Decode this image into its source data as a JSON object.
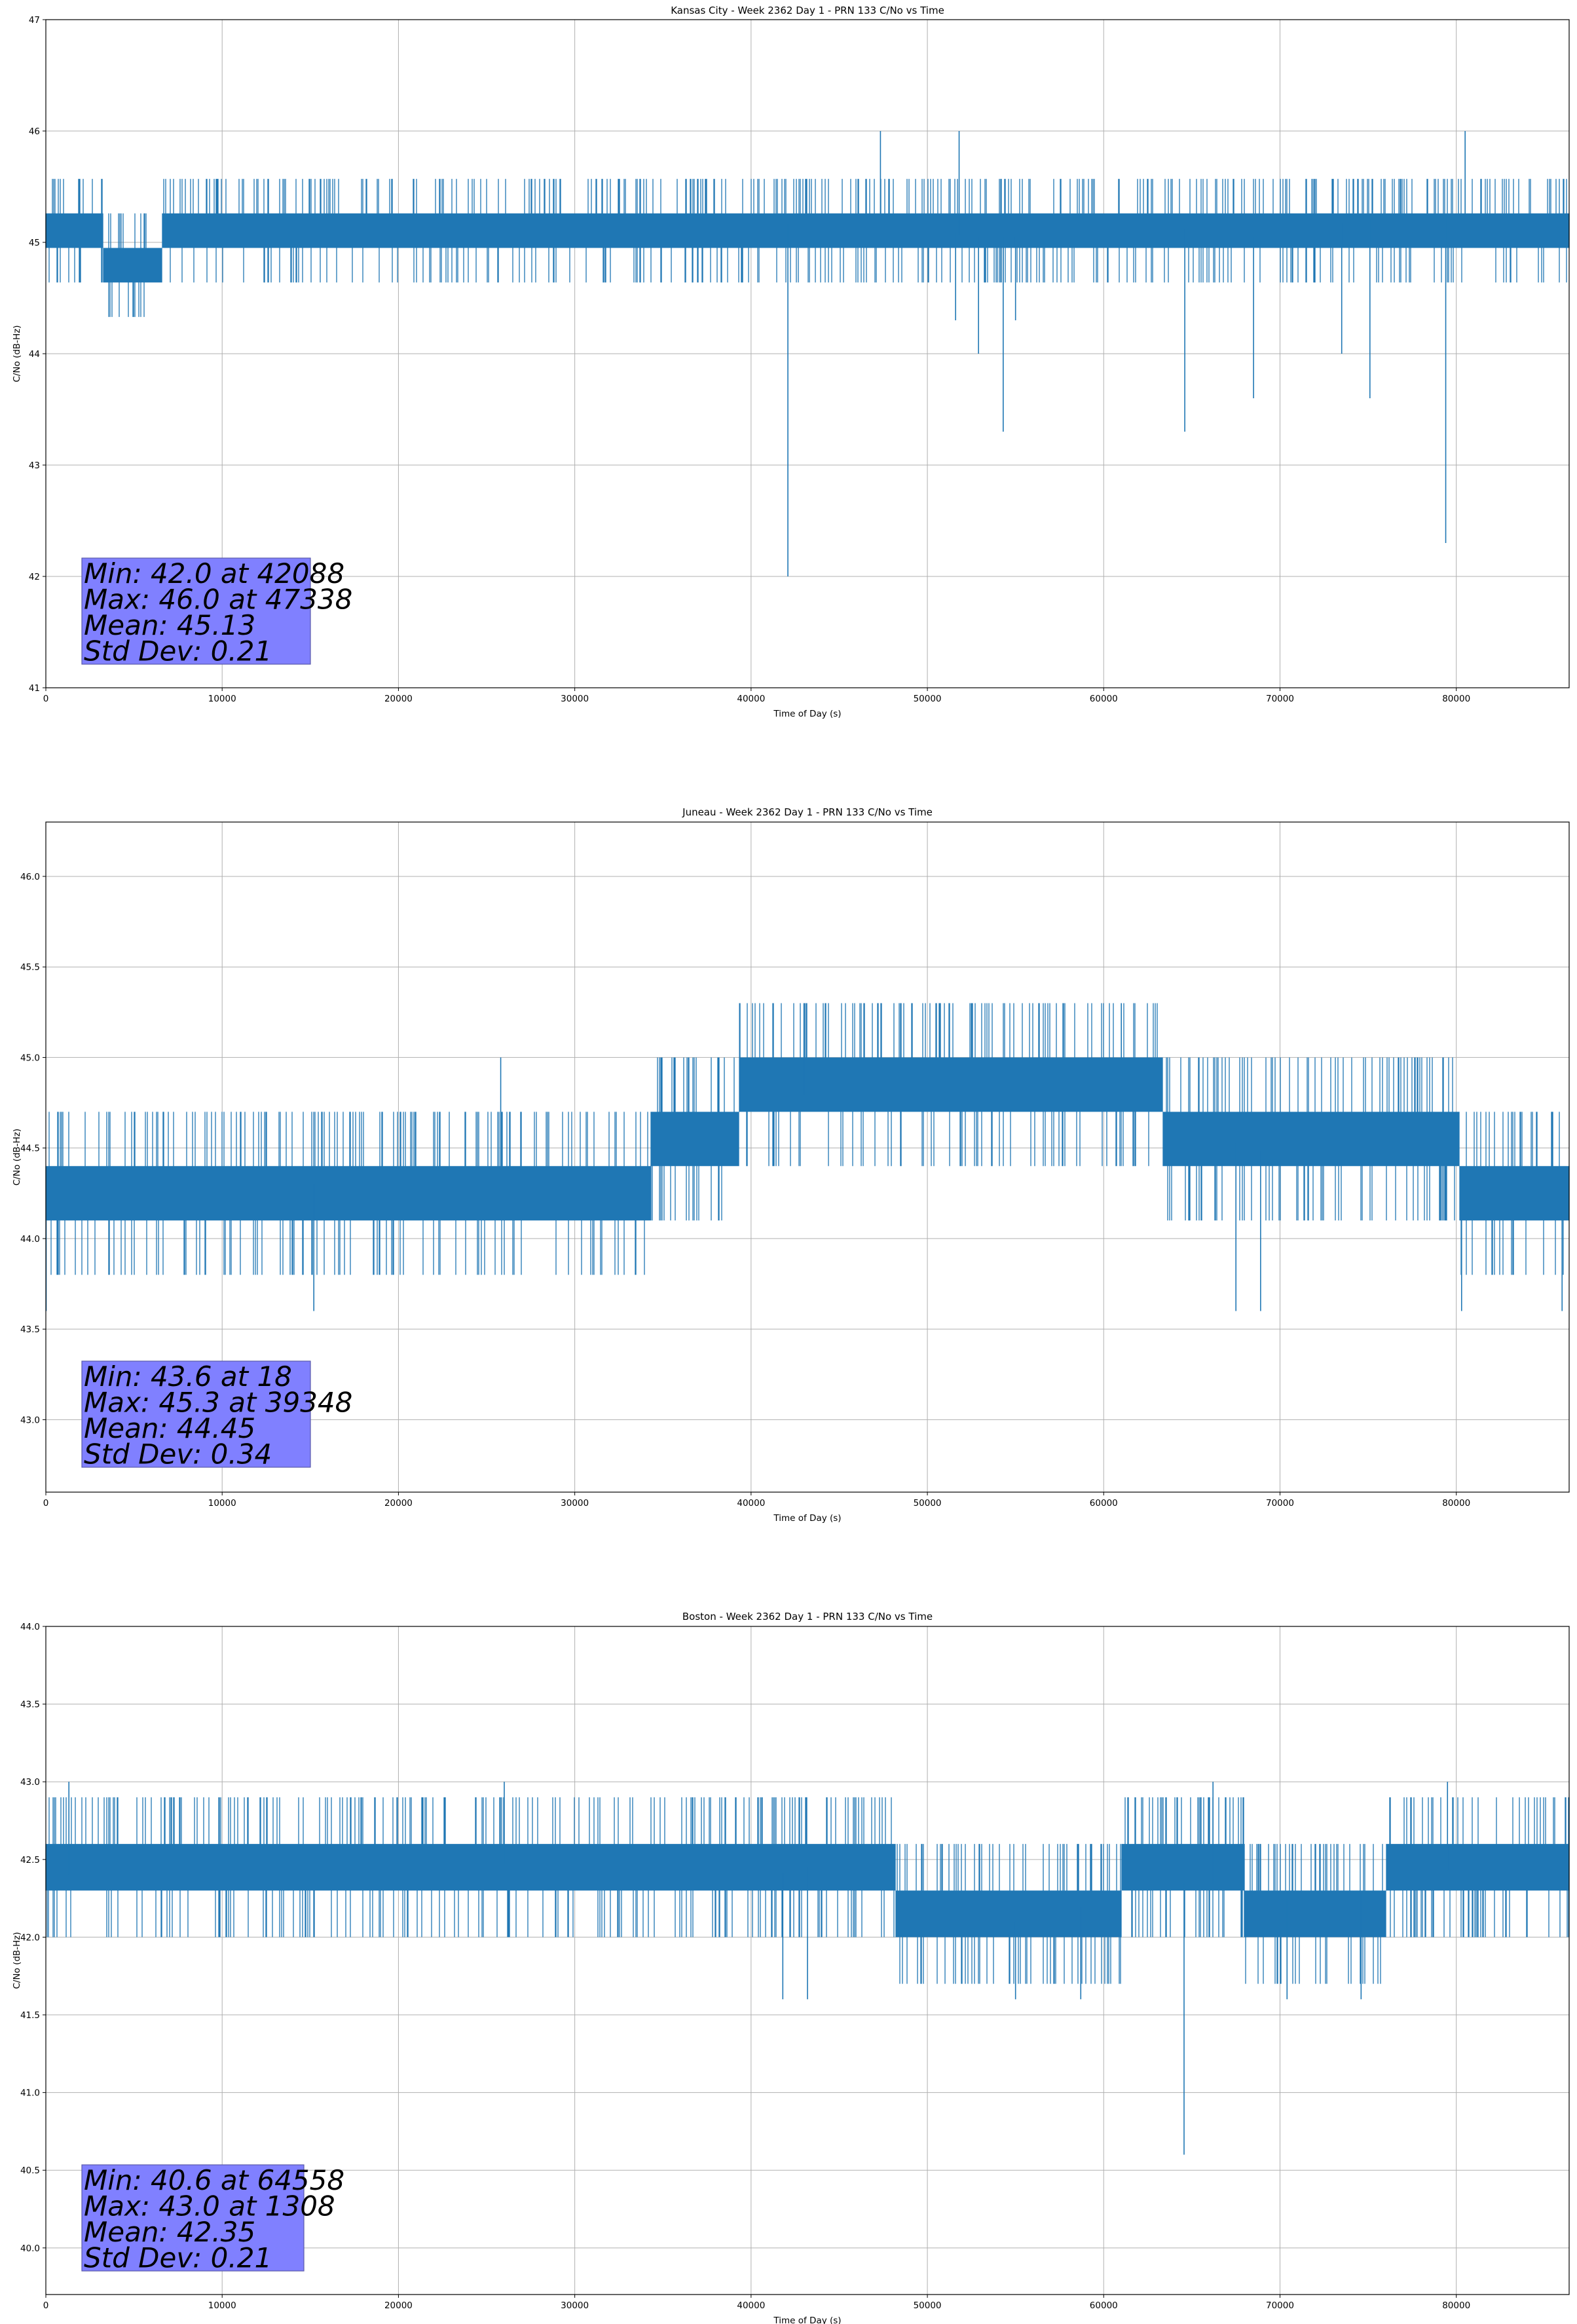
{
  "figure": {
    "line_color": "#1f77b4",
    "stats_box_color": "#8080ff",
    "grid_color": "#b0b0b0"
  },
  "chart_data": [
    {
      "type": "line",
      "title": "Kansas City - Week 2362 Day 1 - PRN 133 C/No vs Time",
      "xlabel": "Time of Day (s)",
      "ylabel": "C/No (dB-Hz)",
      "xlim": [
        0,
        86400
      ],
      "ylim": [
        41,
        47
      ],
      "xticks": [
        0,
        10000,
        20000,
        30000,
        40000,
        50000,
        60000,
        70000,
        80000
      ],
      "xtick_labels": [
        "0",
        "10000",
        "20000",
        "30000",
        "40000",
        "50000",
        "60000",
        "70000",
        "80000"
      ],
      "yticks": [
        41,
        42,
        43,
        44,
        45,
        46,
        47
      ],
      "ytick_labels": [
        "41",
        "42",
        "43",
        "44",
        "45",
        "46",
        "47"
      ],
      "grid": true,
      "quantization": 0.31,
      "baseline": [
        [
          0,
          45.0
        ],
        [
          6500,
          44.9
        ],
        [
          7000,
          45.15
        ],
        [
          33000,
          45.15
        ],
        [
          35000,
          45.05
        ],
        [
          38000,
          44.95
        ],
        [
          40000,
          45.1
        ],
        [
          45000,
          45.25
        ],
        [
          50000,
          45.2
        ],
        [
          52000,
          45.05
        ],
        [
          56000,
          45.05
        ],
        [
          60000,
          45.15
        ],
        [
          64000,
          45.15
        ],
        [
          66000,
          45.05
        ],
        [
          71000,
          45.05
        ],
        [
          74000,
          45.2
        ],
        [
          80000,
          45.25
        ],
        [
          86400,
          45.15
        ]
      ],
      "spikes": [
        [
          42088,
          42.0
        ],
        [
          47338,
          46.0
        ],
        [
          79400,
          42.3
        ],
        [
          54300,
          43.3
        ],
        [
          64600,
          43.3
        ],
        [
          68500,
          43.6
        ],
        [
          75100,
          43.6
        ],
        [
          52900,
          44.0
        ],
        [
          73500,
          44.0
        ],
        [
          51600,
          44.3
        ],
        [
          55000,
          44.3
        ],
        [
          80500,
          46.0
        ],
        [
          51800,
          46.0
        ]
      ],
      "stats": {
        "min": "Min: 42.0 at 42088",
        "max": "Max: 46.0 at 47338",
        "mean": "Mean: 45.13",
        "std": "Std Dev: 0.21"
      }
    },
    {
      "type": "line",
      "title": "Juneau - Week 2362 Day 1 - PRN 133 C/No vs Time",
      "xlabel": "Time of Day (s)",
      "ylabel": "C/No (dB-Hz)",
      "xlim": [
        0,
        86400
      ],
      "ylim": [
        42.6,
        46.3
      ],
      "xticks": [
        0,
        10000,
        20000,
        30000,
        40000,
        50000,
        60000,
        70000,
        80000
      ],
      "xtick_labels": [
        "0",
        "10000",
        "20000",
        "30000",
        "40000",
        "50000",
        "60000",
        "70000",
        "80000"
      ],
      "yticks": [
        43.0,
        43.5,
        44.0,
        44.5,
        45.0,
        45.5,
        46.0
      ],
      "ytick_labels": [
        "43.0",
        "43.5",
        "44.0",
        "44.5",
        "45.0",
        "45.5",
        "46.0"
      ],
      "grid": true,
      "quantization": 0.3,
      "baseline": [
        [
          0,
          44.1
        ],
        [
          5000,
          44.15
        ],
        [
          10000,
          44.2
        ],
        [
          15000,
          44.3
        ],
        [
          20000,
          44.35
        ],
        [
          26000,
          44.4
        ],
        [
          28000,
          44.3
        ],
        [
          31000,
          44.1
        ],
        [
          33000,
          44.2
        ],
        [
          35000,
          44.5
        ],
        [
          38000,
          44.65
        ],
        [
          42000,
          44.8
        ],
        [
          48000,
          44.75
        ],
        [
          51000,
          44.7
        ],
        [
          53000,
          44.8
        ],
        [
          60000,
          44.9
        ],
        [
          65000,
          44.6
        ],
        [
          70000,
          44.45
        ],
        [
          80000,
          44.45
        ],
        [
          81000,
          44.15
        ],
        [
          86400,
          44.15
        ]
      ],
      "spikes": [
        [
          18,
          43.6
        ],
        [
          39348,
          45.3
        ],
        [
          67500,
          43.6
        ],
        [
          68900,
          43.6
        ],
        [
          80300,
          43.6
        ],
        [
          86000,
          43.6
        ],
        [
          15200,
          43.6
        ],
        [
          25800,
          45.0
        ],
        [
          43000,
          45.3
        ],
        [
          61000,
          45.3
        ]
      ],
      "stats": {
        "min": "Min: 43.6 at 18",
        "max": "Max: 45.3 at 39348",
        "mean": "Mean: 44.45",
        "std": "Std Dev: 0.34"
      }
    },
    {
      "type": "line",
      "title": "Boston - Week 2362 Day 1 - PRN 133 C/No vs Time",
      "xlabel": "Time of Day (s)",
      "ylabel": "C/No (dB-Hz)",
      "xlim": [
        0,
        86400
      ],
      "ylim": [
        39.7,
        44.0
      ],
      "xticks": [
        0,
        10000,
        20000,
        30000,
        40000,
        50000,
        60000,
        70000,
        80000
      ],
      "xtick_labels": [
        "0",
        "10000",
        "20000",
        "30000",
        "40000",
        "50000",
        "60000",
        "70000",
        "80000"
      ],
      "yticks": [
        40.0,
        40.5,
        41.0,
        41.5,
        42.0,
        42.5,
        43.0,
        43.5,
        44.0
      ],
      "ytick_labels": [
        "40.0",
        "40.5",
        "41.0",
        "41.5",
        "42.0",
        "42.5",
        "43.0",
        "43.5",
        "44.0"
      ],
      "grid": true,
      "quantization": 0.3,
      "baseline": [
        [
          0,
          42.4
        ],
        [
          20000,
          42.45
        ],
        [
          36000,
          42.5
        ],
        [
          40000,
          42.35
        ],
        [
          43000,
          42.45
        ],
        [
          47000,
          42.4
        ],
        [
          50000,
          42.15
        ],
        [
          55000,
          42.1
        ],
        [
          59000,
          42.2
        ],
        [
          62000,
          42.35
        ],
        [
          66000,
          42.35
        ],
        [
          70000,
          42.25
        ],
        [
          76000,
          42.3
        ],
        [
          80000,
          42.45
        ],
        [
          86400,
          42.45
        ]
      ],
      "spikes": [
        [
          64558,
          40.6
        ],
        [
          1308,
          43.0
        ],
        [
          41800,
          41.6
        ],
        [
          43200,
          41.6
        ],
        [
          70400,
          41.6
        ],
        [
          74600,
          41.6
        ],
        [
          55000,
          41.6
        ],
        [
          58700,
          41.6
        ],
        [
          66200,
          43.0
        ],
        [
          79500,
          43.0
        ],
        [
          26000,
          43.0
        ]
      ],
      "stats": {
        "min": "Min: 40.6 at 64558",
        "max": "Max: 43.0 at 1308",
        "mean": "Mean: 42.35",
        "std": "Std Dev: 0.21"
      }
    }
  ]
}
